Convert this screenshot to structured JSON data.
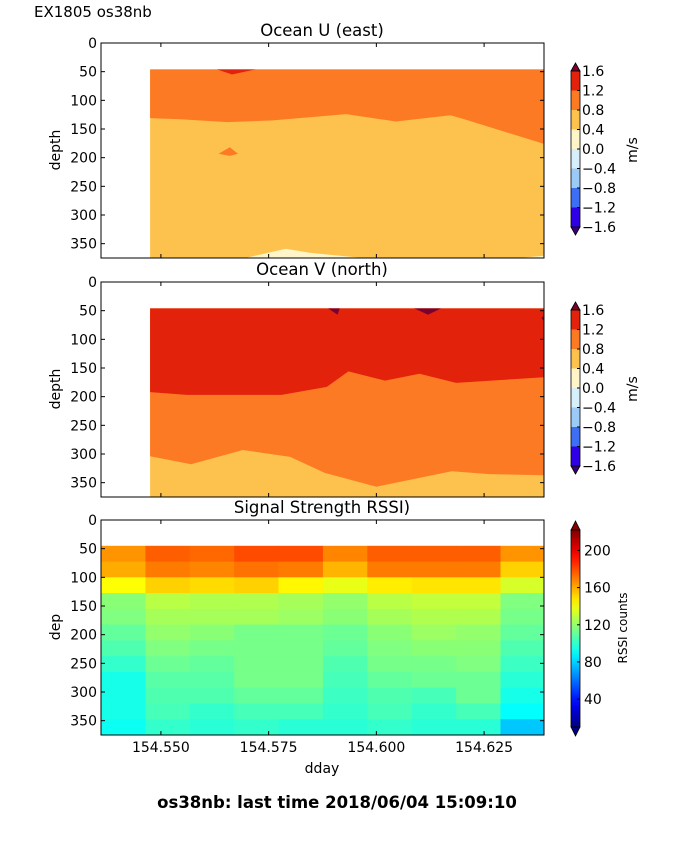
{
  "figure": {
    "suptitle": "EX1805 os38nb",
    "footer": "os38nb: last time 2018/06/04 15:09:10"
  },
  "chart_data": [
    {
      "type": "contour",
      "title": "Ocean U (east)",
      "ylabel": "depth",
      "xlabel": "",
      "xlim": [
        154.5361,
        154.6389
      ],
      "ylim": [
        375,
        0
      ],
      "yticks": [
        0,
        50,
        100,
        150,
        200,
        250,
        300,
        350
      ],
      "xticks": [
        154.55,
        154.575,
        154.6,
        154.625
      ],
      "data_x_range": [
        154.5475,
        154.6389
      ],
      "data_depth_range": [
        46,
        375
      ],
      "colorbar": {
        "label": "m/s",
        "ticks": [
          "1.6",
          "1.2",
          "0.8",
          "0.4",
          "0.0",
          "−0.4",
          "−0.8",
          "−1.2",
          "−1.6"
        ],
        "levels": [
          -1.6,
          -1.2,
          -0.8,
          -0.4,
          0.0,
          0.4,
          0.8,
          1.2,
          1.6
        ],
        "colors": [
          "#2d00e6",
          "#3d6ff5",
          "#9ccaf7",
          "#d7eefb",
          "#fff5c8",
          "#fdc24e",
          "#fd7a24",
          "#e3220c"
        ],
        "under_color": "#3a0078",
        "over_color": "#7a0030"
      },
      "regions": [
        {
          "band": "0.8 to 1.2",
          "depth_top_profile": [
            [
              154.5475,
              46
            ],
            [
              154.6389,
              46
            ]
          ],
          "depth_bottom_profile": [
            [
              154.5475,
              131
            ],
            [
              154.5545,
              133
            ],
            [
              154.5655,
              138
            ],
            [
              154.576,
              135
            ],
            [
              154.593,
              124
            ],
            [
              154.6045,
              137
            ],
            [
              154.6172,
              126
            ],
            [
              154.6208,
              134
            ],
            [
              154.6389,
              176
            ]
          ]
        },
        {
          "band": "0.4 to 0.8",
          "note": "bulk of column below ~135 m"
        },
        {
          "band": "1.2 to 1.6",
          "note": "small patch near 154.566 at top (46-55 m)"
        },
        {
          "band": "0.8 to 1.2",
          "note": "small island near 154.566, ~195 m"
        },
        {
          "band": "0.0 to 0.4",
          "note": "bottom lens near 154.575, ~355-375 m"
        }
      ]
    },
    {
      "type": "contour",
      "title": "Ocean V (north)",
      "ylabel": "depth",
      "xlabel": "",
      "xlim": [
        154.5361,
        154.6389
      ],
      "ylim": [
        375,
        0
      ],
      "yticks": [
        0,
        50,
        100,
        150,
        200,
        250,
        300,
        350
      ],
      "xticks": [
        154.55,
        154.575,
        154.6,
        154.625
      ],
      "data_x_range": [
        154.5475,
        154.6389
      ],
      "data_depth_range": [
        46,
        375
      ],
      "colorbar": {
        "label": "m/s",
        "ticks": [
          "1.6",
          "1.2",
          "0.8",
          "0.4",
          "0.0",
          "−0.4",
          "−0.8",
          "−1.2",
          "−1.6"
        ],
        "levels": [
          -1.6,
          -1.2,
          -0.8,
          -0.4,
          0.0,
          0.4,
          0.8,
          1.2,
          1.6
        ],
        "colors": [
          "#2d00e6",
          "#3d6ff5",
          "#9ccaf7",
          "#d7eefb",
          "#fff5c8",
          "#fdc24e",
          "#fd7a24",
          "#e3220c"
        ],
        "under_color": "#3a0078",
        "over_color": "#7a0030"
      },
      "regions": [
        {
          "band": "1.2 to 1.6",
          "upper_boundary_bottom": [
            [
              154.5475,
              192
            ],
            [
              154.556,
              197
            ],
            [
              154.578,
              197
            ],
            [
              154.5885,
              183
            ],
            [
              154.5935,
              156
            ],
            [
              154.602,
              172
            ],
            [
              154.61,
              160
            ],
            [
              154.6185,
              176
            ],
            [
              154.6389,
              166
            ]
          ]
        },
        {
          "band": "0.8 to 1.2",
          "lower_boundary": [
            [
              154.5475,
              304
            ],
            [
              154.557,
              318
            ],
            [
              154.569,
              293
            ],
            [
              154.58,
              305
            ],
            [
              154.588,
              333
            ],
            [
              154.6,
              357
            ],
            [
              154.6175,
              330
            ],
            [
              154.6262,
              335
            ],
            [
              154.6389,
              337
            ]
          ]
        },
        {
          "band": "0.4 to 0.8",
          "note": "below lower boundary to 375 m"
        },
        {
          "band": "> 1.6",
          "note": "small patches at top near 154.591 and 154.612"
        }
      ]
    },
    {
      "type": "heatmap",
      "title": "Signal Strength RSSI)",
      "ylabel": "dep",
      "xlabel": "dday",
      "xlim": [
        154.5361,
        154.6389
      ],
      "ylim": [
        375,
        0
      ],
      "yticks": [
        0,
        50,
        100,
        150,
        200,
        250,
        300,
        350
      ],
      "xticks": [
        154.55,
        154.575,
        154.6,
        154.625
      ],
      "xtick_labels": [
        "154.550",
        "154.575",
        "154.600",
        "154.625"
      ],
      "colorbar": {
        "label": "RSSI counts",
        "ticks": [
          40,
          80,
          120,
          160,
          200
        ],
        "range": [
          10,
          222
        ],
        "colormap": "jet"
      },
      "x_edges": [
        154.5361,
        154.5464,
        154.5567,
        154.567,
        154.5773,
        154.5876,
        154.5979,
        154.6082,
        154.6185,
        154.6288,
        154.6389
      ],
      "depth_edges": [
        45,
        72.5,
        100,
        127.5,
        155,
        182.5,
        210,
        237.5,
        265,
        292.5,
        320,
        347.5,
        375
      ],
      "values": [
        [
          165,
          176,
          174,
          180,
          180,
          168,
          176,
          176,
          176,
          165
        ],
        [
          160,
          170,
          168,
          172,
          170,
          158,
          170,
          170,
          170,
          152
        ],
        [
          142,
          152,
          150,
          152,
          144,
          138,
          146,
          148,
          148,
          134
        ],
        [
          118,
          128,
          126,
          126,
          124,
          120,
          128,
          130,
          130,
          116
        ],
        [
          116,
          124,
          124,
          124,
          122,
          118,
          124,
          126,
          126,
          114
        ],
        [
          110,
          120,
          118,
          114,
          114,
          112,
          118,
          122,
          120,
          110
        ],
        [
          106,
          116,
          114,
          114,
          114,
          110,
          116,
          118,
          118,
          106
        ],
        [
          100,
          112,
          110,
          114,
          114,
          106,
          114,
          114,
          116,
          102
        ],
        [
          94,
          108,
          108,
          114,
          114,
          104,
          110,
          112,
          112,
          98
        ],
        [
          94,
          106,
          106,
          110,
          110,
          102,
          106,
          104,
          112,
          94
        ],
        [
          94,
          104,
          100,
          104,
          104,
          100,
          104,
          100,
          104,
          90
        ],
        [
          92,
          100,
          98,
          100,
          98,
          98,
          100,
          98,
          98,
          78
        ]
      ]
    }
  ]
}
